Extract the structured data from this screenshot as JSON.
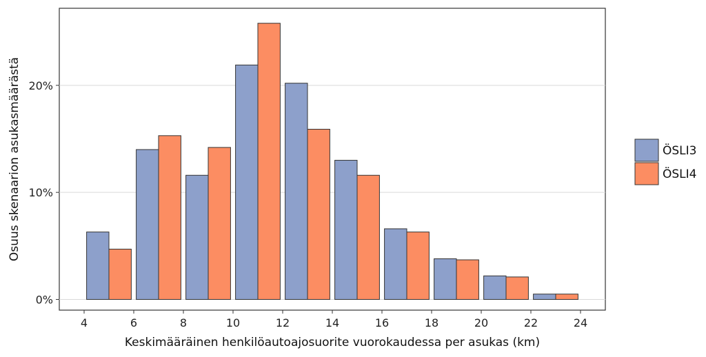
{
  "chart_data": {
    "type": "bar",
    "title": "",
    "xlabel": "Keskimääräinen henkilöautoajosuorite vuorokaudessa per asukas (km)",
    "ylabel": "Osuus skenaarion asukasmäärästä",
    "xlim": [
      3,
      25
    ],
    "ylim": [
      -1.0,
      27.2
    ],
    "x_ticks": [
      4,
      6,
      8,
      10,
      12,
      14,
      16,
      18,
      20,
      22,
      24
    ],
    "x_tick_labels": [
      "4",
      "6",
      "8",
      "10",
      "12",
      "14",
      "16",
      "18",
      "20",
      "22",
      "24"
    ],
    "y_ticks": [
      0,
      10,
      20
    ],
    "y_tick_labels": [
      "0%",
      "10%",
      "20%"
    ],
    "bin_edges": [
      4,
      6,
      8,
      10,
      12,
      14,
      16,
      18,
      20,
      22,
      24
    ],
    "grid": true,
    "legend_position": "right",
    "series": [
      {
        "name": "ÖSLI3",
        "color": "#8da0cb",
        "values": [
          6.3,
          14.0,
          11.6,
          21.9,
          20.2,
          13.0,
          6.6,
          3.8,
          2.2,
          0.5
        ]
      },
      {
        "name": "ÖSLI4",
        "color": "#fc8d62",
        "values": [
          4.7,
          15.3,
          14.2,
          25.8,
          15.9,
          11.6,
          6.3,
          3.7,
          2.1,
          0.5
        ]
      }
    ]
  }
}
